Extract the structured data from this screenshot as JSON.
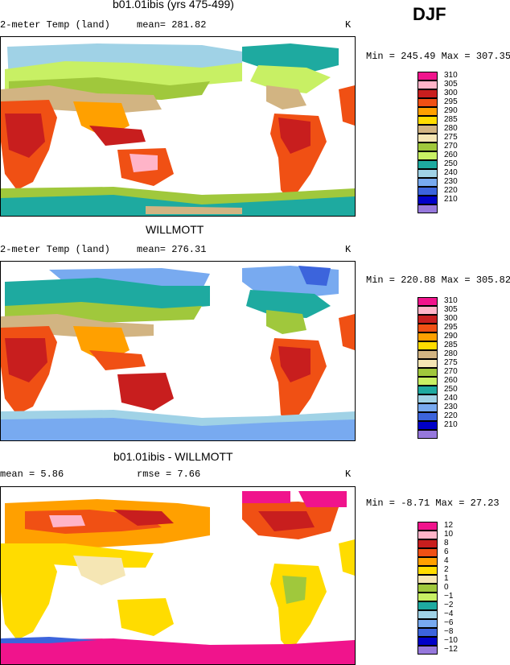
{
  "season": "DJF",
  "panels": [
    {
      "title": "b01.01ibis (yrs 475-499)",
      "left_label": "2-meter Temp (land)",
      "mid_label": "mean= 281.82",
      "units": "K",
      "minmax": "Min = 245.49 Max = 307.35",
      "colorbar": [
        {
          "label": "310",
          "color": "#f0148c"
        },
        {
          "label": "305",
          "color": "#ffb4c8"
        },
        {
          "label": "300",
          "color": "#c81e1e"
        },
        {
          "label": "295",
          "color": "#f05014"
        },
        {
          "label": "290",
          "color": "#ffa000"
        },
        {
          "label": "285",
          "color": "#ffdc00"
        },
        {
          "label": "280",
          "color": "#d2b482"
        },
        {
          "label": "275",
          "color": "#f5e6b4"
        },
        {
          "label": "270",
          "color": "#a0c83c"
        },
        {
          "label": "260",
          "color": "#c8f064"
        },
        {
          "label": "250",
          "color": "#1eaaa0"
        },
        {
          "label": "240",
          "color": "#a0d2e6"
        },
        {
          "label": "230",
          "color": "#78aaf0"
        },
        {
          "label": "220",
          "color": "#3c64dc"
        },
        {
          "label": "210",
          "color": "#0000c8"
        },
        {
          "label": "",
          "color": "#9678dc"
        }
      ]
    },
    {
      "title": "WILLMOTT",
      "left_label": "2-meter Temp (land)",
      "mid_label": "mean= 276.31",
      "units": "K",
      "minmax": "Min = 220.88 Max = 305.82",
      "colorbar": [
        {
          "label": "310",
          "color": "#f0148c"
        },
        {
          "label": "305",
          "color": "#ffb4c8"
        },
        {
          "label": "300",
          "color": "#c81e1e"
        },
        {
          "label": "295",
          "color": "#f05014"
        },
        {
          "label": "290",
          "color": "#ffa000"
        },
        {
          "label": "285",
          "color": "#ffdc00"
        },
        {
          "label": "280",
          "color": "#d2b482"
        },
        {
          "label": "275",
          "color": "#f5e6b4"
        },
        {
          "label": "270",
          "color": "#a0c83c"
        },
        {
          "label": "260",
          "color": "#c8f064"
        },
        {
          "label": "250",
          "color": "#1eaaa0"
        },
        {
          "label": "240",
          "color": "#a0d2e6"
        },
        {
          "label": "230",
          "color": "#78aaf0"
        },
        {
          "label": "220",
          "color": "#3c64dc"
        },
        {
          "label": "210",
          "color": "#0000c8"
        },
        {
          "label": "",
          "color": "#9678dc"
        }
      ]
    },
    {
      "title": "b01.01ibis - WILLMOTT",
      "left_label": "mean =    5.86",
      "mid_label": "rmse =    7.66",
      "units": "K",
      "minmax": "Min =   -8.71 Max =   27.23",
      "colorbar": [
        {
          "label": "12",
          "color": "#f0148c"
        },
        {
          "label": "10",
          "color": "#ffb4c8"
        },
        {
          "label": "8",
          "color": "#c81e1e"
        },
        {
          "label": "6",
          "color": "#f05014"
        },
        {
          "label": "4",
          "color": "#ffa000"
        },
        {
          "label": "2",
          "color": "#ffdc00"
        },
        {
          "label": "1",
          "color": "#f5e6b4"
        },
        {
          "label": "0",
          "color": "#a0c83c"
        },
        {
          "label": "−1",
          "color": "#c8f064"
        },
        {
          "label": "−2",
          "color": "#1eaaa0"
        },
        {
          "label": "−4",
          "color": "#a0d2e6"
        },
        {
          "label": "−6",
          "color": "#78aaf0"
        },
        {
          "label": "−8",
          "color": "#3c64dc"
        },
        {
          "label": "−10",
          "color": "#0000c8"
        },
        {
          "label": "−12",
          "color": "#9678dc"
        }
      ]
    }
  ]
}
